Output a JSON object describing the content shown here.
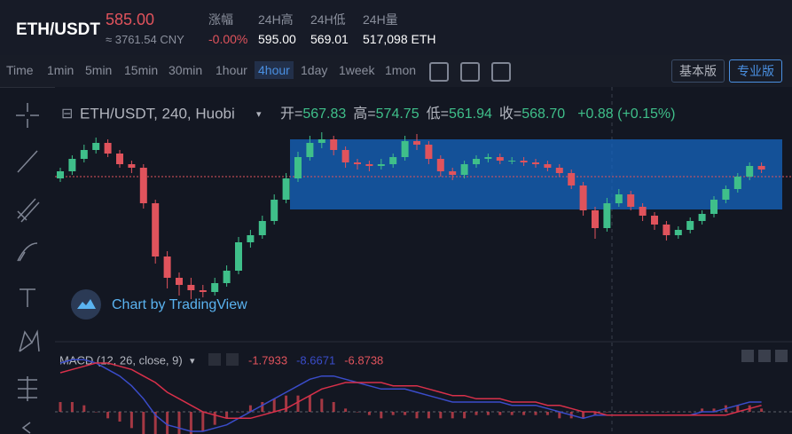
{
  "header": {
    "pair": "ETH/USDT",
    "price": "585.00",
    "cny": "≈ 3761.54 CNY",
    "stats": [
      {
        "label": "涨幅",
        "value": "-0.00%"
      },
      {
        "label": "24H高",
        "value": "595.00"
      },
      {
        "label": "24H低",
        "value": "569.01"
      },
      {
        "label": "24H量",
        "value": "517,098 ETH"
      }
    ]
  },
  "toolbar": {
    "intervals": [
      "Time",
      "1min",
      "5min",
      "15min",
      "30min",
      "1hour",
      "4hour",
      "1day",
      "1week",
      "1mon"
    ],
    "active": "4hour",
    "modes": [
      "基本版",
      "专业版"
    ]
  },
  "chart": {
    "type": "candlestick",
    "symbol": "ETH/USDT, 240, Huobi",
    "ohlc": [
      {
        "label": "开=",
        "value": "567.83"
      },
      {
        "label": "高=",
        "value": "574.75"
      },
      {
        "label": "低=",
        "value": "561.94"
      },
      {
        "label": "收=",
        "value": "568.70"
      }
    ],
    "change": "+0.88 (+0.15%)",
    "watermark": "Chart by TradingView",
    "up_color": "#3fbf8a",
    "down_color": "#e0535c",
    "ylim": [
      494.5,
      634.5
    ],
    "candles": [
      [
        584,
        590,
        582,
        588
      ],
      [
        588,
        597,
        586,
        595
      ],
      [
        595,
        603,
        593,
        600
      ],
      [
        600,
        607,
        598,
        604
      ],
      [
        604,
        606,
        596,
        598
      ],
      [
        598,
        600,
        590,
        592
      ],
      [
        592,
        594,
        587,
        590
      ],
      [
        590,
        592,
        567,
        570
      ],
      [
        570,
        572,
        536,
        540
      ],
      [
        540,
        543,
        522,
        528
      ],
      [
        528,
        531,
        518,
        524
      ],
      [
        524,
        528,
        516,
        521
      ],
      [
        521,
        524,
        517,
        520
      ],
      [
        520,
        528,
        518,
        525
      ],
      [
        525,
        535,
        523,
        532
      ],
      [
        532,
        551,
        530,
        548
      ],
      [
        548,
        555,
        545,
        552
      ],
      [
        552,
        563,
        550,
        560
      ],
      [
        560,
        575,
        558,
        572
      ],
      [
        572,
        587,
        570,
        584
      ],
      [
        584,
        599,
        582,
        596
      ],
      [
        596,
        608,
        594,
        604
      ],
      [
        604,
        610,
        601,
        606
      ],
      [
        606,
        608,
        597,
        600
      ],
      [
        600,
        602,
        590,
        593
      ],
      [
        593,
        595,
        589,
        592
      ],
      [
        592,
        594,
        588,
        591
      ],
      [
        591,
        595,
        589,
        592
      ],
      [
        592,
        598,
        590,
        596
      ],
      [
        596,
        608,
        594,
        605
      ],
      [
        605,
        609,
        600,
        603
      ],
      [
        603,
        605,
        592,
        595
      ],
      [
        595,
        597,
        585,
        588
      ],
      [
        588,
        590,
        583,
        586
      ],
      [
        586,
        594,
        584,
        592
      ],
      [
        592,
        597,
        590,
        595
      ],
      [
        595,
        598,
        593,
        596
      ],
      [
        596,
        598,
        592,
        594
      ],
      [
        594,
        596,
        592,
        594
      ],
      [
        594,
        596,
        591,
        593
      ],
      [
        593,
        595,
        590,
        592
      ],
      [
        592,
        594,
        588,
        590
      ],
      [
        590,
        592,
        585,
        587
      ],
      [
        587,
        589,
        578,
        580
      ],
      [
        580,
        582,
        563,
        566
      ],
      [
        566,
        568,
        550,
        556
      ],
      [
        556,
        573,
        554,
        570
      ],
      [
        570,
        578,
        568,
        575
      ],
      [
        575,
        577,
        566,
        568
      ],
      [
        568,
        570,
        560,
        563
      ],
      [
        563,
        565,
        555,
        558
      ],
      [
        558,
        560,
        549,
        552
      ],
      [
        552,
        557,
        550,
        555
      ],
      [
        555,
        562,
        553,
        560
      ],
      [
        560,
        566,
        558,
        564
      ],
      [
        564,
        574,
        562,
        572
      ],
      [
        572,
        580,
        570,
        578
      ],
      [
        578,
        587,
        576,
        585
      ],
      [
        585,
        593,
        583,
        591
      ],
      [
        591,
        593,
        587,
        589
      ]
    ]
  },
  "macd": {
    "title": "MACD (12, 26, close, 9)",
    "readings": [
      {
        "value": "-1.7933",
        "color": "#e0535c"
      },
      {
        "value": "-8.6671",
        "color": "#3a4cc9"
      },
      {
        "value": "-6.8738",
        "color": "#e0535c"
      }
    ],
    "ylim": [
      -6,
      18
    ],
    "macd_color": "#3a4cc9",
    "signal_color": "#d8304a",
    "hist_color": "#c9414c",
    "macd": [
      15,
      16,
      16,
      15,
      13,
      11,
      8,
      4,
      -1,
      -4,
      -5,
      -6,
      -6,
      -5,
      -4,
      -2,
      0,
      2,
      4,
      6,
      8,
      10,
      11,
      11,
      10,
      9,
      8,
      7,
      7,
      7,
      6,
      5,
      4,
      3,
      3,
      3,
      3,
      3,
      2,
      2,
      2,
      1,
      0,
      -1,
      -2,
      -1,
      -1,
      -1,
      -1,
      -1,
      -1,
      -1,
      -1,
      -1,
      0,
      0,
      1,
      2,
      3,
      3
    ],
    "signal": [
      12,
      13,
      14,
      15,
      15,
      14,
      13,
      11,
      9,
      6,
      4,
      2,
      0,
      -1,
      -2,
      -2,
      -2,
      -1,
      0,
      1,
      3,
      5,
      7,
      8,
      9,
      9,
      9,
      9,
      8,
      8,
      8,
      7,
      6,
      5,
      5,
      4,
      4,
      4,
      3,
      3,
      3,
      2,
      2,
      1,
      0,
      0,
      -1,
      -1,
      -1,
      -1,
      -1,
      -1,
      -1,
      -1,
      -1,
      -1,
      -1,
      0,
      1,
      2
    ],
    "hist": [
      3,
      3,
      2,
      0,
      -2,
      -3,
      -5,
      -7,
      -10,
      -10,
      -9,
      -8,
      -6,
      -4,
      -2,
      0,
      2,
      3,
      4,
      5,
      5,
      5,
      4,
      3,
      1,
      0,
      -1,
      -2,
      -1,
      -1,
      -2,
      -2,
      -2,
      -2,
      -2,
      -1,
      -1,
      -1,
      -1,
      -1,
      -1,
      -1,
      -2,
      -2,
      -2,
      -1,
      0,
      0,
      0,
      0,
      0,
      0,
      0,
      0,
      1,
      1,
      2,
      2,
      2,
      1
    ]
  }
}
